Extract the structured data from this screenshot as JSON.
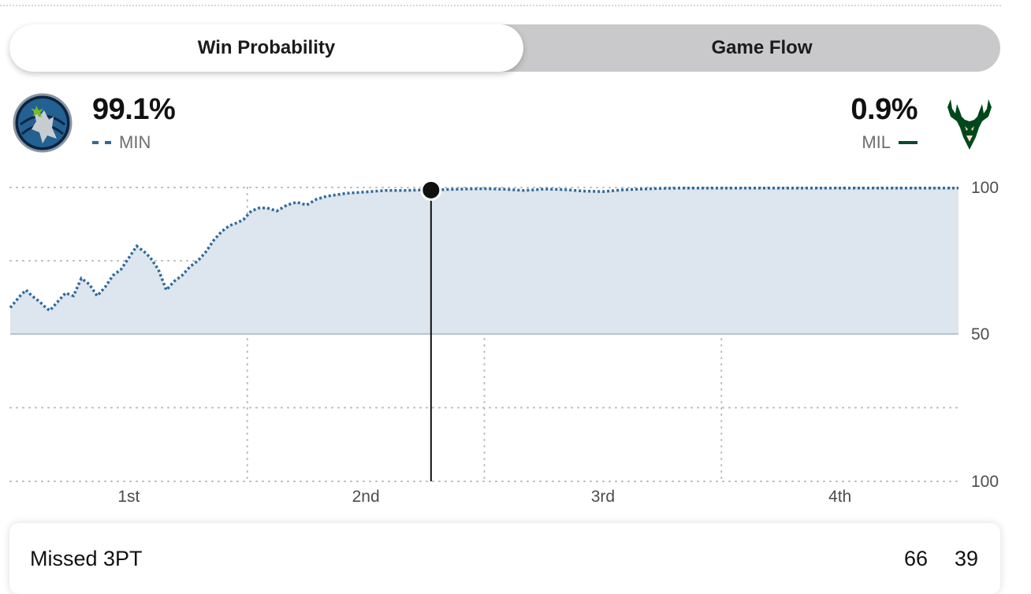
{
  "tabs": [
    {
      "label": "Win Probability",
      "active": true
    },
    {
      "label": "Game Flow",
      "active": false
    }
  ],
  "home_team": {
    "abbr": "MIN",
    "win_pct": "99.1%",
    "logo": "timberwolves-logo",
    "line_color": "#2f6a9a",
    "line_style": "dashed"
  },
  "away_team": {
    "abbr": "MIL",
    "win_pct": "0.9%",
    "logo": "bucks-logo",
    "line_color": "#0d4a2a",
    "line_style": "solid"
  },
  "chart_data": {
    "type": "line",
    "y_tick_labels": [
      "100",
      "50",
      "100"
    ],
    "x_tick_labels": [
      "1st",
      "2nd",
      "3rd",
      "4th"
    ],
    "ylim": [
      0,
      100
    ],
    "xlim": [
      0,
      48
    ],
    "grid": true,
    "fill_color": "#dde5ee",
    "series": [
      {
        "name": "MIN",
        "color": "#2f6a9a",
        "x": [
          0,
          0.5,
          0.8,
          1.1,
          1.5,
          1.8,
          2.0,
          2.4,
          2.8,
          3.2,
          3.6,
          4.0,
          4.4,
          4.8,
          5.2,
          5.6,
          6.0,
          6.4,
          6.8,
          7.1,
          7.5,
          7.9,
          8.3,
          8.7,
          9.1,
          9.5,
          9.9,
          10.3,
          10.7,
          11.1,
          11.5,
          11.8,
          12.2,
          12.6,
          13.0,
          13.5,
          14.0,
          14.5,
          15.0,
          15.5,
          16.0,
          17.0,
          18.0,
          19.0,
          20.0,
          21.0,
          21.3,
          22.0,
          23.0,
          24.0,
          25.0,
          26.0,
          26.5,
          27.0,
          28.0,
          29.0,
          30.0,
          30.5,
          31.0,
          32.0,
          33.0,
          34.0,
          36.0,
          38.0,
          40.0,
          42.0,
          44.0,
          46.0,
          48.0
        ],
        "y": [
          59,
          63,
          65,
          63,
          61,
          59,
          58,
          61,
          64,
          63,
          69,
          67,
          63,
          66,
          70,
          72,
          76,
          80,
          78,
          76,
          72,
          65,
          68,
          70,
          73,
          75,
          78,
          82,
          85,
          87,
          88,
          89,
          92,
          93,
          93,
          92,
          94,
          95,
          94,
          96,
          97,
          98,
          98.5,
          99,
          99,
          99.2,
          99.1,
          99.3,
          99.5,
          99.6,
          99.4,
          99,
          99.2,
          99.5,
          99.3,
          98.8,
          98.6,
          98.9,
          99.2,
          99.5,
          99.7,
          99.8,
          99.8,
          99.8,
          99.8,
          99.8,
          99.8,
          99.8,
          99.8
        ]
      }
    ],
    "marker": {
      "x": 21.3,
      "y": 99.1
    }
  },
  "play": {
    "description": "Missed 3PT",
    "home_score": "66",
    "away_score": "39"
  }
}
